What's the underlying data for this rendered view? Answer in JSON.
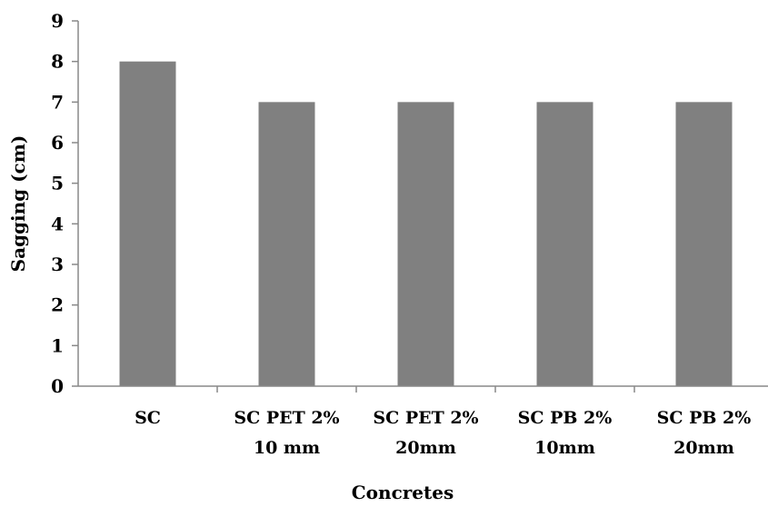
{
  "chart_data": {
    "type": "bar",
    "categories": [
      [
        "SC"
      ],
      [
        "SC PET 2%",
        "10 mm"
      ],
      [
        "SC PET 2%",
        "20mm"
      ],
      [
        "SC PB 2%",
        "10mm"
      ],
      [
        "SC PB 2%",
        "20mm"
      ]
    ],
    "values": [
      8,
      7,
      7,
      7,
      7
    ],
    "title": "",
    "xlabel": "Concretes",
    "ylabel": "Sagging (cm)",
    "ylim": [
      0,
      9
    ],
    "yticks": [
      "0",
      "1",
      "2",
      "3",
      "4",
      "5",
      "6",
      "7",
      "8",
      "9"
    ],
    "grid": false,
    "legend": "none",
    "bar_color": "#808080",
    "axis_color": "#888888"
  }
}
